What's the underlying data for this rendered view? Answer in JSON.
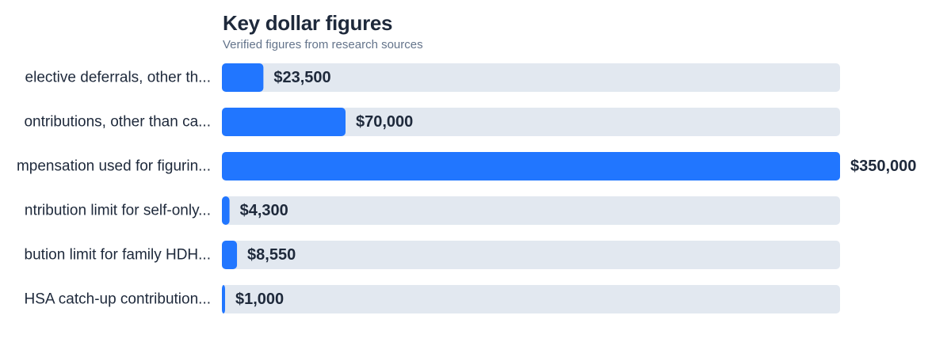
{
  "header": {
    "title": "Key dollar figures",
    "subtitle": "Verified figures from research sources"
  },
  "colors": {
    "bar": "#2176ff",
    "track": "#e2e8f0",
    "text": "#1e293b",
    "muted": "#64748b"
  },
  "chart_data": {
    "type": "bar",
    "orientation": "horizontal",
    "title": "Key dollar figures",
    "subtitle": "Verified figures from research sources",
    "categories": [
      "elective deferrals, other th...",
      "ontributions, other than ca...",
      "mpensation used for figurin...",
      "ntribution limit for self-only...",
      "bution limit for family HDH...",
      "HSA catch-up contribution..."
    ],
    "values": [
      23500,
      70000,
      350000,
      4300,
      8550,
      1000
    ],
    "value_labels": [
      "$23,500",
      "$70,000",
      "$350,000",
      "$4,300",
      "$8,550",
      "$1,000"
    ],
    "xlim": [
      0,
      350000
    ],
    "grid": false,
    "legend": "none"
  }
}
